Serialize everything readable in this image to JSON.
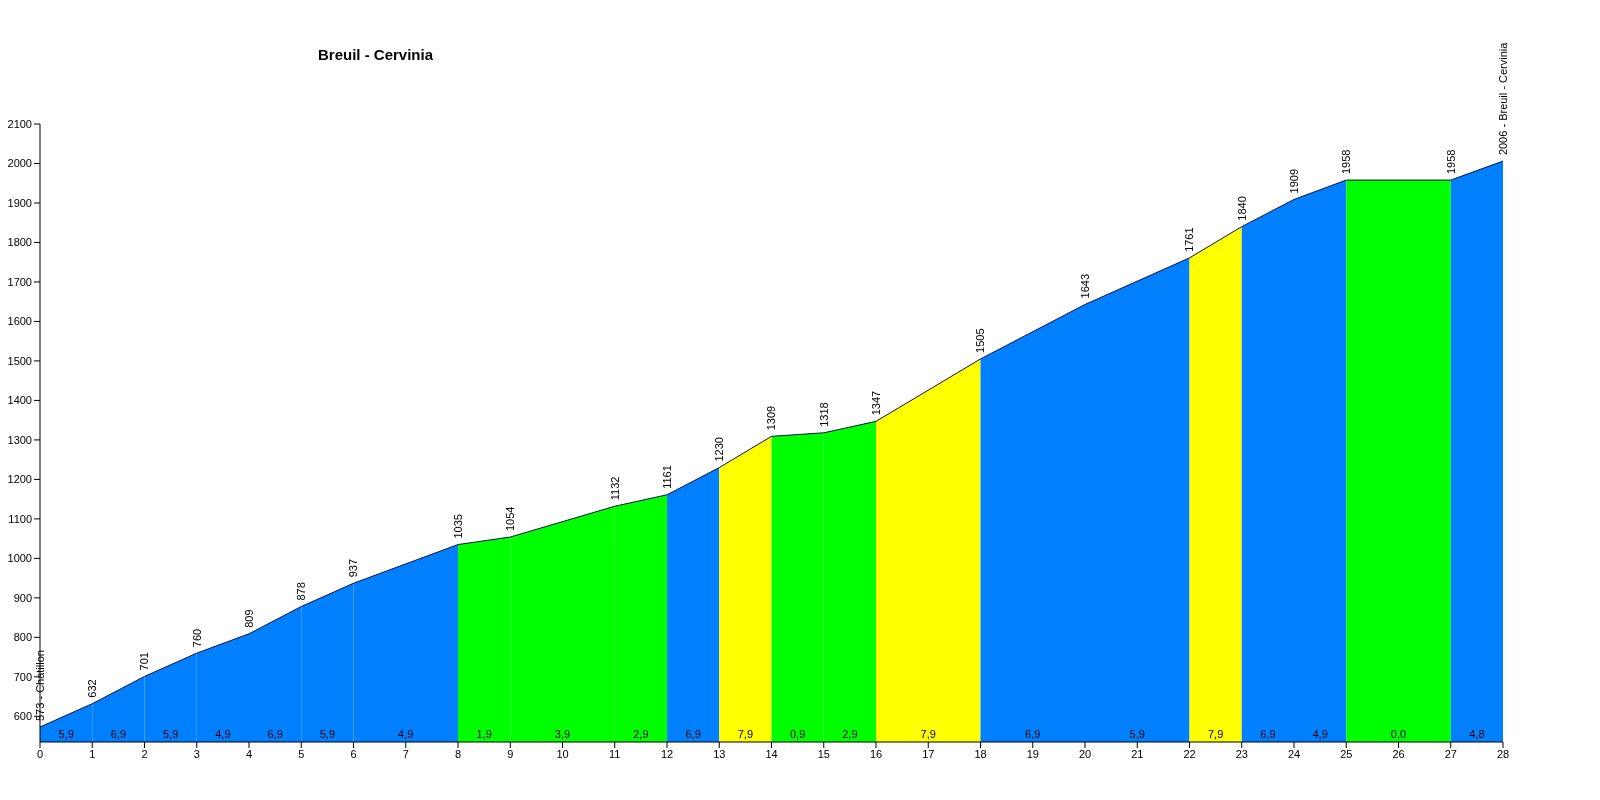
{
  "chart_data": {
    "type": "area",
    "title": "Breuil - Cervinia",
    "xlim": [
      0,
      28
    ],
    "xticks": [
      0,
      1,
      2,
      3,
      4,
      5,
      6,
      7,
      8,
      9,
      10,
      11,
      12,
      13,
      14,
      15,
      16,
      17,
      18,
      19,
      20,
      21,
      22,
      23,
      24,
      25,
      26,
      27,
      28
    ],
    "ylim": [
      535,
      2100
    ],
    "yticks": [
      600,
      700,
      800,
      900,
      1000,
      1100,
      1200,
      1300,
      1400,
      1500,
      1600,
      1700,
      1800,
      1900,
      2000,
      2100
    ],
    "grid": false,
    "legend": false,
    "marker": "none",
    "line_style": "solid",
    "series": [
      {
        "type": "area",
        "color": "#0080ff",
        "x": [
          0,
          1
        ],
        "values": [
          573,
          632
        ]
      },
      {
        "type": "area",
        "color": "#0080ff",
        "x": [
          1,
          2
        ],
        "values": [
          632,
          701
        ]
      },
      {
        "type": "area",
        "color": "#0080ff",
        "x": [
          2,
          3
        ],
        "values": [
          701,
          760
        ]
      },
      {
        "type": "area",
        "color": "#0080ff",
        "x": [
          3,
          4
        ],
        "values": [
          760,
          809
        ]
      },
      {
        "type": "area",
        "color": "#0080ff",
        "x": [
          4,
          5
        ],
        "values": [
          809,
          878
        ]
      },
      {
        "type": "area",
        "color": "#0080ff",
        "x": [
          5,
          6
        ],
        "values": [
          878,
          937
        ]
      },
      {
        "type": "area",
        "color": "#0080ff",
        "x": [
          6,
          8
        ],
        "values": [
          937,
          1035
        ]
      },
      {
        "type": "area",
        "color": "#00ff00",
        "x": [
          8,
          9
        ],
        "values": [
          1035,
          1054
        ]
      },
      {
        "type": "area",
        "color": "#00ff00",
        "x": [
          9,
          11
        ],
        "values": [
          1054,
          1132
        ]
      },
      {
        "type": "area",
        "color": "#00ff00",
        "x": [
          11,
          12
        ],
        "values": [
          1132,
          1161
        ]
      },
      {
        "type": "area",
        "color": "#0080ff",
        "x": [
          12,
          13
        ],
        "values": [
          1161,
          1230
        ]
      },
      {
        "type": "area",
        "color": "#ffff00",
        "x": [
          13,
          14
        ],
        "values": [
          1230,
          1309
        ]
      },
      {
        "type": "area",
        "color": "#00ff00",
        "x": [
          14,
          15
        ],
        "values": [
          1309,
          1318
        ]
      },
      {
        "type": "area",
        "color": "#00ff00",
        "x": [
          15,
          16
        ],
        "values": [
          1318,
          1347
        ]
      },
      {
        "type": "area",
        "color": "#ffff00",
        "x": [
          16,
          18
        ],
        "values": [
          1347,
          1505
        ]
      },
      {
        "type": "area",
        "color": "#0080ff",
        "x": [
          18,
          20
        ],
        "values": [
          1505,
          1643
        ]
      },
      {
        "type": "area",
        "color": "#0080ff",
        "x": [
          20,
          22
        ],
        "values": [
          1643,
          1761
        ]
      },
      {
        "type": "area",
        "color": "#ffff00",
        "x": [
          22,
          23
        ],
        "values": [
          1761,
          1840
        ]
      },
      {
        "type": "area",
        "color": "#0080ff",
        "x": [
          23,
          24
        ],
        "values": [
          1840,
          1909
        ]
      },
      {
        "type": "area",
        "color": "#0080ff",
        "x": [
          24,
          25
        ],
        "values": [
          1909,
          1958
        ]
      },
      {
        "type": "area",
        "color": "#00ff00",
        "x": [
          25,
          27
        ],
        "values": [
          1958,
          1958
        ]
      },
      {
        "type": "area",
        "color": "#0080ff",
        "x": [
          27,
          28
        ],
        "values": [
          1958,
          2006
        ]
      },
      {
        "type": "line",
        "color": "#10104a",
        "x": [
          0,
          1,
          2,
          3,
          4,
          5,
          6,
          8,
          9,
          11,
          12,
          13,
          14,
          15,
          16,
          18,
          20,
          22,
          23,
          24,
          25,
          27,
          28
        ],
        "values": [
          573,
          632,
          701,
          760,
          809,
          878,
          937,
          1035,
          1054,
          1132,
          1161,
          1230,
          1309,
          1318,
          1347,
          1505,
          1643,
          1761,
          1840,
          1909,
          1958,
          1958,
          2006
        ],
        "value_labels": [
          "573 - Chatillon",
          "632",
          "701",
          "760",
          "809",
          "878",
          "937",
          "1035",
          "1054",
          "1132",
          "1161",
          "1230",
          "1309",
          "1318",
          "1347",
          "1505",
          "1643",
          "1761",
          "1840",
          "1909",
          "1958",
          "1958",
          "2006 - Breuil - Cervinia"
        ]
      }
    ],
    "annotations": [
      "5,9",
      "6,9",
      "5,9",
      "4,9",
      "6,9",
      "5,9",
      "4,9",
      "1,9",
      "3,9",
      "2,9",
      "6,9",
      "7,9",
      "0,9",
      "2,9",
      "7,9",
      "6,9",
      "5,9",
      "7,9",
      "6,9",
      "4,9",
      "0,0",
      "4,8"
    ]
  }
}
